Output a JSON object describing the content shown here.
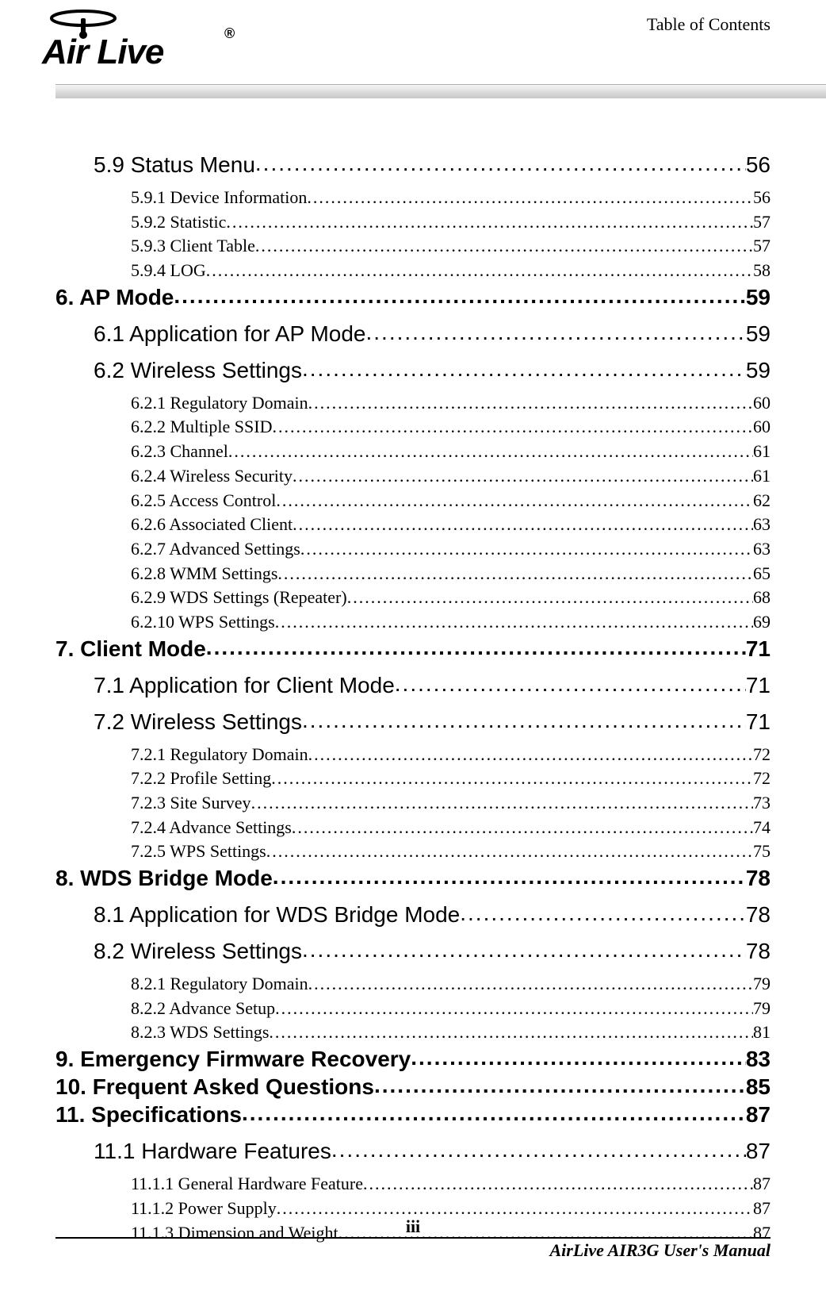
{
  "header": {
    "right_text": "Table of Contents"
  },
  "toc": [
    {
      "level": 2,
      "title": "5.9 Status Menu",
      "page": "56"
    },
    {
      "level": 3,
      "title": "5.9.1 Device Information",
      "page": "56"
    },
    {
      "level": 3,
      "title": "5.9.2 Statistic",
      "page": "57"
    },
    {
      "level": 3,
      "title": "5.9.3 Client Table",
      "page": "57"
    },
    {
      "level": 3,
      "title": "5.9.4 LOG",
      "page": "58"
    },
    {
      "level": 1,
      "title": "6. AP Mode",
      "page": "59"
    },
    {
      "level": 2,
      "title": "6.1 Application for AP Mode",
      "page": "59"
    },
    {
      "level": 2,
      "title": "6.2 Wireless Settings",
      "page": "59"
    },
    {
      "level": 3,
      "title": "6.2.1 Regulatory Domain",
      "page": "60"
    },
    {
      "level": 3,
      "title": "6.2.2 Multiple SSID",
      "page": "60"
    },
    {
      "level": 3,
      "title": "6.2.3 Channel",
      "page": "61"
    },
    {
      "level": 3,
      "title": "6.2.4 Wireless Security",
      "page": "61"
    },
    {
      "level": 3,
      "title": "6.2.5 Access Control",
      "page": "62"
    },
    {
      "level": 3,
      "title": "6.2.6 Associated Client",
      "page": "63"
    },
    {
      "level": 3,
      "title": "6.2.7 Advanced Settings",
      "page": "63"
    },
    {
      "level": 3,
      "title": "6.2.8 WMM Settings",
      "page": "65"
    },
    {
      "level": 3,
      "title": "6.2.9 WDS Settings (Repeater)",
      "page": "68"
    },
    {
      "level": 3,
      "title": "6.2.10 WPS Settings",
      "page": "69"
    },
    {
      "level": 1,
      "title": "7. Client Mode",
      "page": "71"
    },
    {
      "level": 2,
      "title": "7.1 Application for Client Mode",
      "page": "71"
    },
    {
      "level": 2,
      "title": "7.2 Wireless Settings",
      "page": "71"
    },
    {
      "level": 3,
      "title": "7.2.1 Regulatory Domain",
      "page": "72"
    },
    {
      "level": 3,
      "title": "7.2.2 Profile Setting",
      "page": "72"
    },
    {
      "level": 3,
      "title": "7.2.3 Site Survey",
      "page": "73"
    },
    {
      "level": 3,
      "title": "7.2.4 Advance Settings",
      "page": "74"
    },
    {
      "level": 3,
      "title": "7.2.5 WPS Settings",
      "page": "75"
    },
    {
      "level": 1,
      "title": "8. WDS Bridge Mode",
      "page": "78"
    },
    {
      "level": 2,
      "title": "8.1 Application for WDS Bridge Mode",
      "page": "78"
    },
    {
      "level": 2,
      "title": "8.2 Wireless Settings",
      "page": "78"
    },
    {
      "level": 3,
      "title": "8.2.1 Regulatory Domain",
      "page": "79"
    },
    {
      "level": 3,
      "title": "8.2.2 Advance Setup",
      "page": "79"
    },
    {
      "level": 3,
      "title": "8.2.3 WDS Settings",
      "page": "81"
    },
    {
      "level": 1,
      "title": "9. Emergency Firmware Recovery",
      "page": "83"
    },
    {
      "level": 1,
      "title": "10. Frequent Asked Questions",
      "page": "85"
    },
    {
      "level": 1,
      "title": "11. Specifications",
      "page": "87"
    },
    {
      "level": 2,
      "title": "11.1 Hardware Features",
      "page": "87"
    },
    {
      "level": 3,
      "title": "11.1.1 General Hardware Feature",
      "page": "87"
    },
    {
      "level": 3,
      "title": "11.1.2 Power Supply",
      "page": "87"
    },
    {
      "level": 3,
      "title": "11.1.3 Dimension and Weight",
      "page": "87"
    }
  ],
  "footer": {
    "page_number": "iii",
    "right_text": "AirLive  AIR3G  User's  Manual"
  },
  "dots": "............................................................................................................................................................................................................"
}
